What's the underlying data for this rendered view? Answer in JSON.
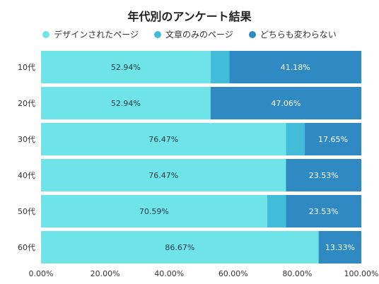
{
  "chart_data": {
    "type": "bar",
    "orientation": "horizontal",
    "stacked": true,
    "title": "年代別のアンケート結果",
    "categories": [
      "10代",
      "20代",
      "30代",
      "40代",
      "50代",
      "60代"
    ],
    "series": [
      {
        "name": "デザインされたページ",
        "color": "#6ee3e8",
        "values": [
          52.94,
          52.94,
          76.47,
          76.47,
          70.59,
          86.67
        ],
        "labels": [
          "52.94%",
          "52.94%",
          "76.47%",
          "76.47%",
          "70.59%",
          "86.67%"
        ]
      },
      {
        "name": "文章のみのページ",
        "color": "#43bcd9",
        "values": [
          5.88,
          0,
          5.88,
          0,
          5.88,
          0
        ],
        "labels": [
          "",
          "",
          "",
          "",
          "",
          ""
        ]
      },
      {
        "name": "どちらも変わらない",
        "color": "#2f8ac4",
        "values": [
          41.18,
          47.06,
          17.65,
          23.53,
          23.53,
          13.33
        ],
        "labels": [
          "41.18%",
          "47.06%",
          "17.65%",
          "23.53%",
          "23.53%",
          "13.33%"
        ]
      }
    ],
    "xlim": [
      0,
      100
    ],
    "xticks": [
      "0.00%",
      "20.00%",
      "40.00%",
      "60.00%",
      "80.00%",
      "100.00%"
    ],
    "legend_position": "top",
    "grid": false
  }
}
